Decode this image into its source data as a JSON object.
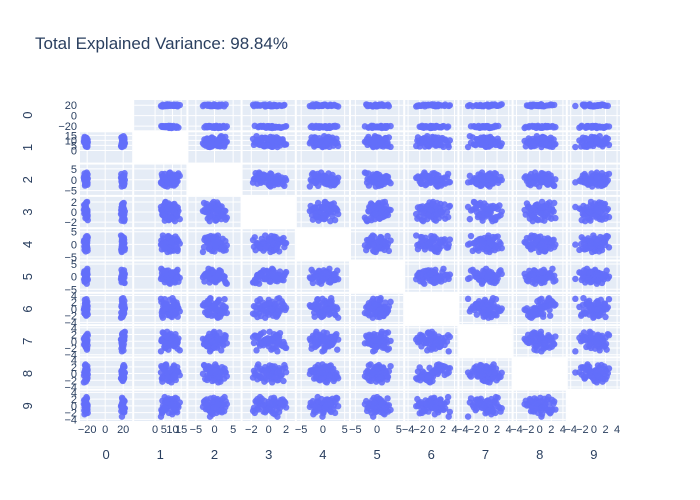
{
  "title": "Total Explained Variance: 98.84%",
  "colors": {
    "marker": "#636efa",
    "panel_bg": "#e5ecf6",
    "grid": "#ffffff",
    "text": "#2a3f5f"
  },
  "chart_data": {
    "type": "scatter",
    "subtype": "scatter-matrix",
    "title": "Total Explained Variance: 98.84%",
    "dimensions": [
      "0",
      "1",
      "2",
      "3",
      "4",
      "5",
      "6",
      "7",
      "8",
      "9"
    ],
    "diagonal_visible": false,
    "grid": true,
    "legend": "none",
    "axes": [
      {
        "name": "0",
        "range": [
          -28,
          30
        ],
        "ticks": [
          -20,
          0,
          20
        ],
        "tick_labels": [
          "−20",
          "0",
          "20"
        ]
      },
      {
        "name": "1",
        "range": [
          -12,
          18
        ],
        "ticks": [
          0,
          5,
          10,
          15
        ],
        "tick_labels": [
          "0",
          "5",
          "10",
          "15"
        ]
      },
      {
        "name": "2",
        "range": [
          -7,
          7
        ],
        "ticks": [
          -5,
          0,
          5
        ],
        "tick_labels": [
          "−5",
          "0",
          "5"
        ]
      },
      {
        "name": "3",
        "range": [
          -3,
          3
        ],
        "ticks": [
          -2,
          0,
          2
        ],
        "tick_labels": [
          "−2",
          "0",
          "2"
        ]
      },
      {
        "name": "4",
        "range": [
          -6,
          6
        ],
        "ticks": [
          -5,
          0,
          5
        ],
        "tick_labels": [
          "−5",
          "0",
          "5"
        ]
      },
      {
        "name": "5",
        "range": [
          -6,
          6
        ],
        "ticks": [
          -5,
          0,
          5
        ],
        "tick_labels": [
          "−5",
          "0",
          "5"
        ]
      },
      {
        "name": "6",
        "range": [
          -4.5,
          4.5
        ],
        "ticks": [
          -4,
          -2,
          0,
          2,
          4
        ],
        "tick_labels": [
          "−4",
          "−2",
          "0",
          "2",
          "4"
        ]
      },
      {
        "name": "7",
        "range": [
          -4.5,
          4.5
        ],
        "ticks": [
          -4,
          -2,
          0,
          2,
          4
        ],
        "tick_labels": [
          "−4",
          "−2",
          "0",
          "2",
          "4"
        ]
      },
      {
        "name": "8",
        "range": [
          -4.5,
          4.5
        ],
        "ticks": [
          -4,
          -2,
          0,
          2,
          4
        ],
        "tick_labels": [
          "−4",
          "−2",
          "0",
          "2",
          "4"
        ]
      },
      {
        "name": "9",
        "range": [
          -4.5,
          4.5
        ],
        "ticks": [
          -4,
          -2,
          0,
          2,
          4
        ],
        "tick_labels": [
          "−4",
          "−2",
          "0",
          "2",
          "4"
        ]
      }
    ],
    "points": {
      "count": 60,
      "values": [
        [
          -21.0,
          9.5,
          0.8,
          0.4,
          -0.5,
          0.3,
          -0.6,
          0.2,
          -0.4,
          0.3
        ],
        [
          18.5,
          6.1,
          -1.2,
          -0.3,
          1.1,
          -0.8,
          1.2,
          -0.7,
          0.3,
          -0.5
        ],
        [
          -22.3,
          10.2,
          1.9,
          1.1,
          0.2,
          -0.4,
          -1.5,
          0.9,
          0.6,
          -0.2
        ],
        [
          19.2,
          8.8,
          -0.4,
          -1.0,
          -1.4,
          1.2,
          0.3,
          -1.3,
          -0.9,
          1.1
        ],
        [
          -19.8,
          4.7,
          -2.3,
          0.0,
          2.4,
          0.9,
          0.8,
          0.4,
          1.4,
          -1.0
        ],
        [
          20.1,
          7.4,
          0.3,
          0.8,
          -0.2,
          -1.6,
          -0.2,
          1.5,
          -0.2,
          0.6
        ],
        [
          -20.7,
          12.3,
          -0.9,
          -0.7,
          0.8,
          1.9,
          1.9,
          -0.2,
          0.9,
          0.4
        ],
        [
          17.9,
          3.9,
          2.6,
          0.3,
          -2.0,
          -0.1,
          -1.1,
          0.6,
          -1.5,
          -1.6
        ],
        [
          -23.4,
          8.0,
          0.1,
          1.4,
          1.6,
          -1.1,
          0.0,
          -1.0,
          -0.6,
          1.7
        ],
        [
          21.3,
          10.8,
          -1.8,
          -1.3,
          0.5,
          0.6,
          2.4,
          1.1,
          2.0,
          -0.8
        ],
        [
          -20.2,
          6.6,
          1.4,
          -0.2,
          -0.9,
          2.3,
          -0.9,
          -0.4,
          -1.8,
          0.1
        ],
        [
          18.8,
          11.7,
          -0.2,
          0.6,
          3.1,
          -0.7,
          0.5,
          2.1,
          0.1,
          2.4
        ],
        [
          -21.8,
          5.3,
          -1.5,
          0.9,
          -1.8,
          0.0,
          1.4,
          -1.7,
          1.1,
          -1.3
        ],
        [
          19.7,
          9.1,
          1.1,
          -0.9,
          0.0,
          1.5,
          -2.1,
          0.0,
          -1.1,
          0.8
        ],
        [
          -22.9,
          13.4,
          2.9,
          0.2,
          1.3,
          -2.0,
          0.2,
          0.8,
          0.5,
          -0.4
        ],
        [
          20.6,
          5.8,
          -2.8,
          1.8,
          -1.1,
          0.4,
          1.0,
          -0.9,
          2.5,
          1.3
        ],
        [
          -19.4,
          7.9,
          0.5,
          -1.6,
          2.8,
          -1.3,
          -1.6,
          1.7,
          -0.3,
          -2.1
        ],
        [
          18.1,
          12.9,
          -0.7,
          0.5,
          -2.6,
          2.7,
          0.7,
          -2.2,
          0.7,
          0.2
        ],
        [
          -21.5,
          4.2,
          1.6,
          -0.5,
          0.6,
          -0.2,
          -0.4,
          0.3,
          -2.4,
          1.5
        ],
        [
          19.9,
          10.0,
          -1.1,
          1.2,
          1.9,
          0.8,
          3.2,
          1.3,
          1.6,
          -1.8
        ],
        [
          -20.5,
          8.6,
          3.3,
          -1.1,
          -0.4,
          -2.8,
          -1.2,
          -0.6,
          -0.8,
          0.5
        ],
        [
          21.8,
          6.9,
          -0.1,
          0.1,
          -1.5,
          1.1,
          0.1,
          2.8,
          0.2,
          -0.7
        ],
        [
          -22.1,
          11.1,
          -2.1,
          1.6,
          1.0,
          0.2,
          1.6,
          -1.4,
          1.3,
          1.9
        ],
        [
          17.6,
          4.5,
          0.9,
          -0.4,
          3.5,
          -1.0,
          -2.6,
          0.5,
          -1.4,
          -0.1
        ],
        [
          -23.0,
          9.9,
          -0.5,
          0.7,
          -2.2,
          1.7,
          0.6,
          1.0,
          0.4,
          -2.5
        ],
        [
          20.3,
          14.2,
          1.8,
          -1.4,
          0.3,
          -0.5,
          -0.7,
          -2.7,
          -0.5,
          1.0
        ],
        [
          -19.9,
          3.6,
          -1.6,
          0.4,
          1.5,
          3.1,
          2.1,
          0.1,
          2.2,
          -1.2
        ],
        [
          19.0,
          8.3,
          0.0,
          1.0,
          -0.7,
          -1.8,
          -1.9,
          1.9,
          -2.0,
          0.7
        ],
        [
          -21.2,
          12.6,
          2.2,
          -0.8,
          2.2,
          0.5,
          0.4,
          -0.8,
          0.8,
          2.1
        ],
        [
          18.4,
          7.1,
          -3.1,
          0.2,
          -3.0,
          -0.3,
          1.1,
          0.7,
          -0.1,
          -0.3
        ],
        [
          -20.9,
          5.9,
          0.7,
          1.9,
          0.4,
          1.3,
          -0.3,
          -1.9,
          1.7,
          0.9
        ],
        [
          21.0,
          11.4,
          -1.3,
          -1.8,
          1.7,
          -2.3,
          -1.4,
          1.2,
          -1.2,
          -1.5
        ],
        [
          -22.6,
          8.4,
          1.2,
          0.0,
          -1.3,
          0.7,
          2.7,
          -0.1,
          0.0,
          1.2
        ],
        [
          19.5,
          4.9,
          -0.3,
          1.3,
          0.9,
          2.0,
          -0.6,
          2.4,
          -0.7,
          -0.6
        ],
        [
          -19.6,
          10.6,
          2.4,
          -0.6,
          -2.5,
          -0.9,
          0.9,
          -1.2,
          1.0,
          0.3
        ],
        [
          20.8,
          9.3,
          -2.5,
          0.6,
          2.6,
          1.0,
          -1.0,
          0.4,
          -1.6,
          1.6
        ],
        [
          -21.9,
          6.3,
          0.2,
          -1.2,
          -0.1,
          -1.5,
          1.3,
          1.4,
          2.7,
          -1.1
        ],
        [
          18.2,
          13.0,
          1.5,
          0.9,
          -1.9,
          0.1,
          -2.3,
          -0.3,
          0.6,
          0.0
        ],
        [
          -20.3,
          7.6,
          -1.0,
          0.3,
          3.3,
          2.4,
          0.0,
          -2.5,
          -0.9,
          2.2
        ],
        [
          19.4,
          5.1,
          0.6,
          -0.1,
          -0.6,
          -0.6,
          1.8,
          0.9,
          1.2,
          -0.9
        ],
        [
          -22.2,
          11.9,
          -2.0,
          1.1,
          1.2,
          0.3,
          -0.8,
          -0.5,
          -1.9,
          0.4
        ],
        [
          21.5,
          8.1,
          3.0,
          -1.5,
          -2.3,
          -2.5,
          0.5,
          1.6,
          0.3,
          1.4
        ],
        [
          -21.1,
          4.0,
          -0.8,
          0.5,
          0.1,
          1.4,
          -2.0,
          0.0,
          1.8,
          -2.2
        ],
        [
          18.7,
          10.4,
          1.0,
          1.5,
          2.0,
          -1.2,
          2.3,
          -1.1,
          -0.4,
          0.6
        ],
        [
          -19.7,
          9.0,
          -1.4,
          -0.9,
          -1.6,
          0.9,
          -0.1,
          2.2,
          -1.3,
          -0.2
        ],
        [
          20.0,
          6.5,
          0.4,
          0.7,
          0.7,
          -0.1,
          1.5,
          -1.6,
          2.1,
          1.8
        ],
        [
          -23.2,
          12.1,
          1.7,
          -0.3,
          -0.8,
          2.1,
          -1.3,
          0.6,
          0.2,
          -1.4
        ],
        [
          19.6,
          7.8,
          -0.6,
          1.7,
          2.5,
          -1.4,
          0.2,
          -0.2,
          -2.2,
          0.1
        ],
        [
          -20.8,
          5.5,
          2.7,
          -1.0,
          -1.2,
          0.0,
          2.9,
          1.8,
          1.5,
          2.6
        ],
        [
          18.9,
          11.2,
          -1.9,
          0.0,
          1.4,
          1.6,
          -1.7,
          -1.5,
          -0.6,
          -0.8
        ],
        [
          -21.6,
          8.7,
          0.0,
          1.2,
          -2.8,
          -0.7,
          0.7,
          0.2,
          0.9,
          0.9
        ],
        [
          20.9,
          4.4,
          1.3,
          -0.6,
          0.2,
          2.5,
          -0.5,
          2.6,
          -1.0,
          -1.7
        ],
        [
          -22.4,
          10.9,
          -2.7,
          0.1,
          1.8,
          -1.9,
          1.7,
          -0.7,
          2.4,
          0.7
        ],
        [
          19.1,
          9.7,
          0.8,
          -1.3,
          -0.3,
          0.6,
          -2.4,
          1.0,
          -1.7,
          2.0
        ],
        [
          -20.1,
          6.0,
          -0.2,
          2.0,
          0.5,
          1.8,
          0.3,
          -2.0,
          0.4,
          -0.5
        ],
        [
          21.2,
          12.7,
          2.0,
          -0.4,
          -1.7,
          -0.4,
          1.2,
          0.3,
          1.9,
          -1.9
        ],
        [
          -21.4,
          7.3,
          -1.7,
          0.8,
          2.9,
          0.8,
          -1.8,
          1.3,
          -1.1,
          1.1
        ],
        [
          18.3,
          5.6,
          0.3,
          -1.7,
          -1.0,
          -2.2,
          0.8,
          -0.5,
          0.8,
          -0.6
        ],
        [
          -23.6,
          9.4,
          1.0,
          0.4,
          0.9,
          1.1,
          -0.2,
          0.7,
          -2.6,
          0.5
        ],
        [
          18.6,
          3.4,
          -1.2,
          1.0,
          -0.1,
          -0.9,
          3.0,
          -3.0,
          0.3,
          -3.2
        ]
      ]
    }
  }
}
